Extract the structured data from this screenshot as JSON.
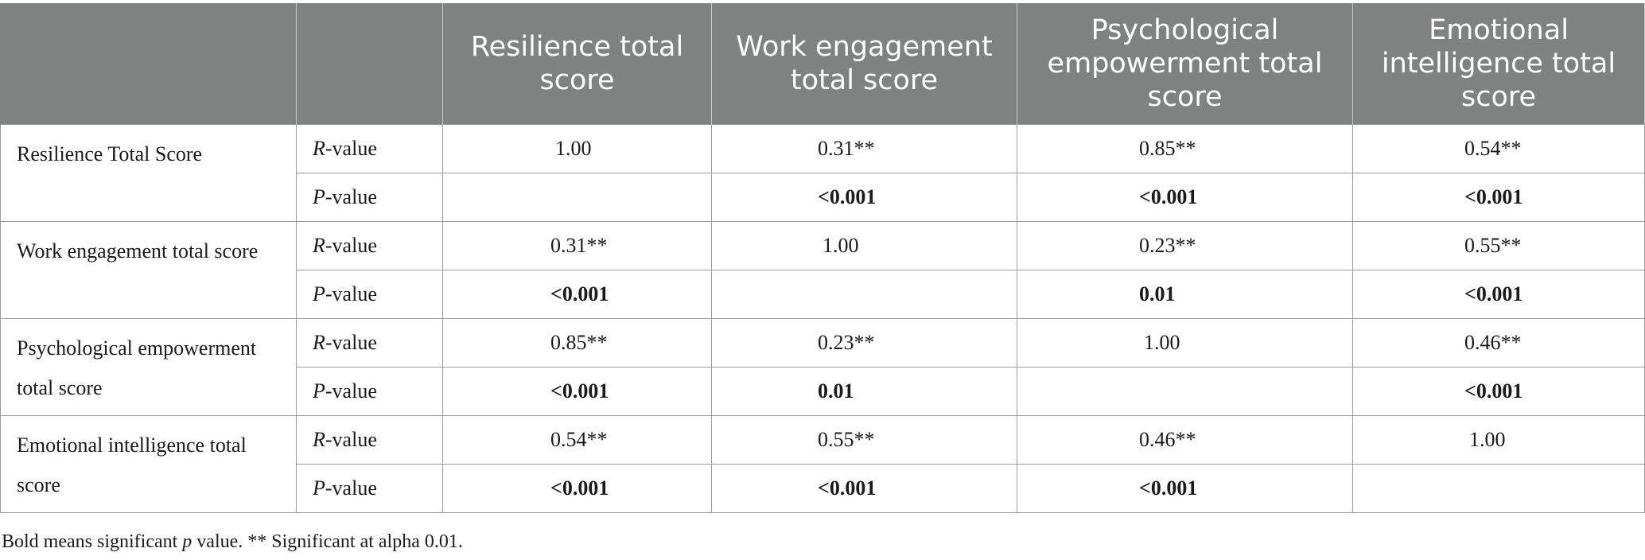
{
  "header": {
    "col1": "",
    "col2": "",
    "col3": "Resilience total score",
    "col4": "Work engagement total score",
    "col5": "Psychological empowerment total score",
    "col6": "Emotional intelligence total score"
  },
  "rows": [
    {
      "label": "Resilience Total Score",
      "r": {
        "letter": "R",
        "suffix": "-value",
        "values": [
          "1.00",
          "0.31**",
          "0.85**",
          "0.54**"
        ]
      },
      "p": {
        "letter": "P",
        "suffix": "-value",
        "values": [
          "",
          "<0.001",
          "<0.001",
          "<0.001"
        ]
      }
    },
    {
      "label": "Work engagement total score",
      "r": {
        "letter": "R",
        "suffix": "-value",
        "values": [
          "0.31**",
          "1.00",
          "0.23**",
          "0.55**"
        ]
      },
      "p": {
        "letter": "P",
        "suffix": "-value",
        "values": [
          "<0.001",
          "",
          "0.01",
          "<0.001"
        ]
      }
    },
    {
      "label": "Psychological empowerment total score",
      "r": {
        "letter": "R",
        "suffix": "-value",
        "values": [
          "0.85**",
          "0.23**",
          "1.00",
          "0.46**"
        ]
      },
      "p": {
        "letter": "P",
        "suffix": "-value",
        "values": [
          "<0.001",
          "0.01",
          "",
          "<0.001"
        ]
      }
    },
    {
      "label": "Emotional intelligence total score",
      "r": {
        "letter": "R",
        "suffix": "-value",
        "values": [
          "0.54**",
          "0.55**",
          "0.46**",
          "1.00"
        ]
      },
      "p": {
        "letter": "P",
        "suffix": "-value",
        "values": [
          "<0.001",
          "<0.001",
          "<0.001",
          ""
        ]
      }
    }
  ],
  "footnote": {
    "part1": "Bold means significant ",
    "p_italic": "p",
    "part2": " value. ** Significant at alpha 0.01."
  },
  "colors": {
    "header_bg": "#7f8280",
    "header_text": "#ffffff",
    "border": "#9a9c9b"
  }
}
